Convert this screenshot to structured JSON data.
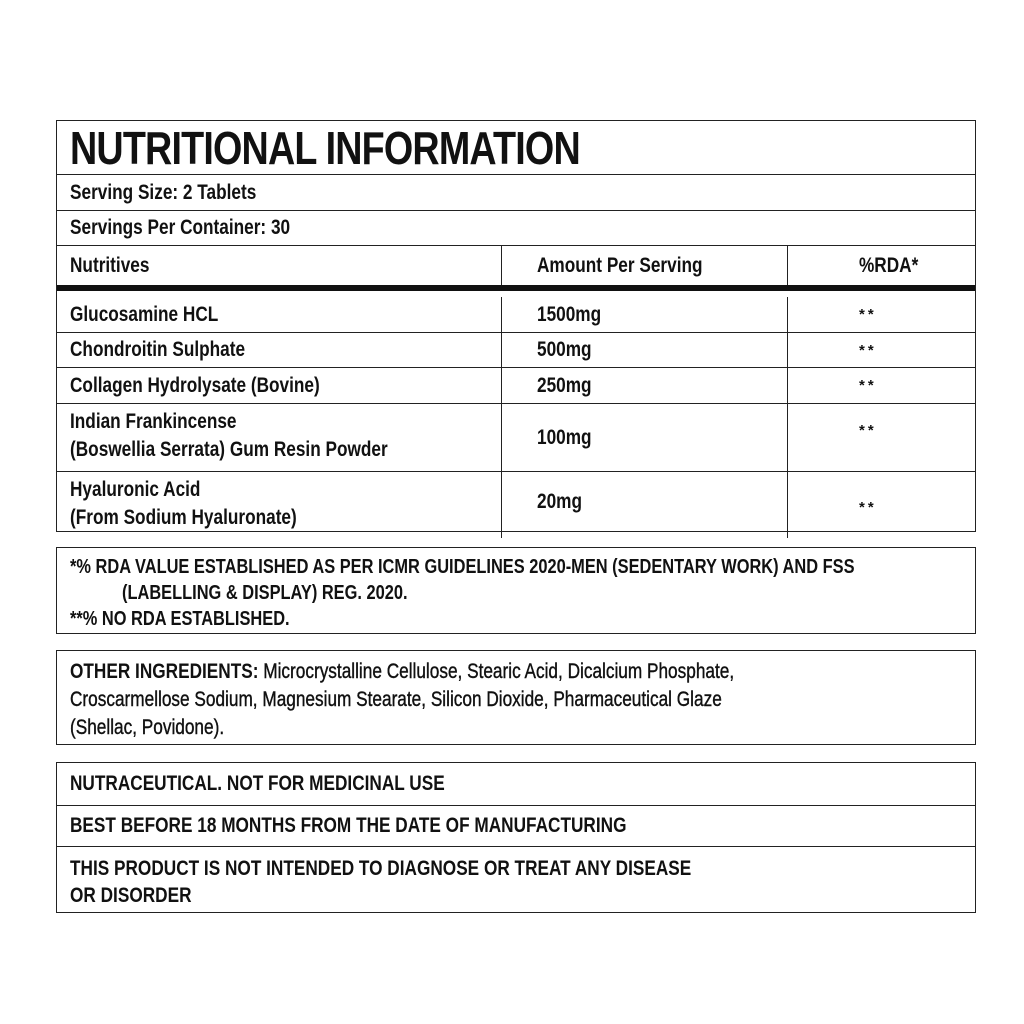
{
  "title": "NUTRITIONAL INFORMATION",
  "serving_size": "Serving Size: 2 Tablets",
  "servings_per_container": "Servings Per Container: 30",
  "table": {
    "headers": [
      "Nutritives",
      "Amount Per Serving",
      "%RDA*"
    ],
    "rows": [
      {
        "name": "Glucosamine HCL",
        "name2": "",
        "amount": "1500mg",
        "rda": "**"
      },
      {
        "name": "Chondroitin Sulphate",
        "name2": "",
        "amount": "500mg",
        "rda": "**"
      },
      {
        "name": "Collagen Hydrolysate (Bovine)",
        "name2": "",
        "amount": "250mg",
        "rda": "**"
      },
      {
        "name": "Indian Frankincense",
        "name2": "(Boswellia Serrata) Gum Resin Powder",
        "amount": "100mg",
        "rda": "**"
      },
      {
        "name": "Hyaluronic Acid",
        "name2": "(From Sodium Hyaluronate)",
        "amount": "20mg",
        "rda": "**"
      }
    ]
  },
  "footnotes": {
    "line1": "*% RDA VALUE ESTABLISHED AS PER ICMR GUIDELINES 2020-MEN (SEDENTARY WORK) AND FSS",
    "line2": "(LABELLING & DISPLAY) REG. 2020.",
    "line3": "**% NO RDA ESTABLISHED."
  },
  "other_ingredients": {
    "label": "OTHER INGREDIENTS:",
    "line1": " Microcrystalline Cellulose, Stearic Acid, Dicalcium Phosphate,",
    "line2": "Croscarmellose Sodium, Magnesium Stearate, Silicon Dioxide, Pharmaceutical Glaze",
    "line3": "(Shellac, Povidone)."
  },
  "notices": [
    "NUTRACEUTICAL. NOT FOR MEDICINAL USE",
    "BEST BEFORE 18 MONTHS FROM THE DATE OF MANUFACTURING",
    "THIS PRODUCT IS NOT INTENDED TO DIAGNOSE OR TREAT ANY DISEASE",
    "OR DISORDER"
  ]
}
